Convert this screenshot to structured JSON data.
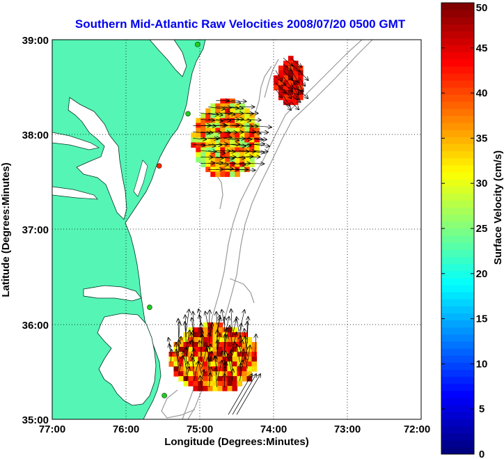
{
  "title": "Southern Mid-Atlantic Raw Velocities 2008/07/20 0500 GMT",
  "map": {
    "xlabel": "Longitude (Degrees:Minutes)",
    "ylabel": "Latitude (Degrees:Minutes)",
    "x_ticks": [
      "77:00",
      "76:00",
      "75:00",
      "74:00",
      "73:00",
      "72:00"
    ],
    "y_ticks": [
      "39:00",
      "38:00",
      "37:00",
      "36:00",
      "35:00"
    ],
    "lon_range": [
      -77,
      -72
    ],
    "lat_range": [
      35,
      39
    ],
    "grid": "dotted",
    "land_color": "#55f5b5",
    "water_color": "#ffffff",
    "bathymetry_color": "#999999"
  },
  "colorbar": {
    "label": "Surface Velocity (cm/s)",
    "ticks": [
      "0",
      "5",
      "10",
      "15",
      "20",
      "25",
      "30",
      "35",
      "40",
      "45",
      "50"
    ],
    "range": [
      0,
      50
    ],
    "colormap": "jet"
  },
  "stations": [
    {
      "lon": -75.03,
      "lat": 38.95,
      "color": "#22cc22"
    },
    {
      "lon": -75.16,
      "lat": 38.22,
      "color": "#22cc22"
    },
    {
      "lon": -75.55,
      "lat": 37.67,
      "color": "#ff2200"
    },
    {
      "lon": -75.68,
      "lat": 36.18,
      "color": "#22cc22"
    },
    {
      "lon": -75.48,
      "lat": 35.25,
      "color": "#22cc22"
    }
  ],
  "velocity_regions": [
    {
      "name": "northeast",
      "lon_range": [
        -74.0,
        -73.62
      ],
      "lat_range": [
        38.32,
        38.83
      ],
      "speed_range_cm_s": [
        40,
        50
      ]
    },
    {
      "name": "central",
      "lon_range": [
        -75.12,
        -74.22
      ],
      "lat_range": [
        37.58,
        38.38
      ],
      "speed_range_cm_s": [
        25,
        45
      ]
    },
    {
      "name": "south",
      "lon_range": [
        -75.42,
        -74.25
      ],
      "lat_range": [
        35.32,
        36.02
      ],
      "speed_range_cm_s": [
        30,
        50
      ]
    }
  ],
  "scale_arrows": {
    "lon": -74.5,
    "lat": 35.05,
    "count": 3
  }
}
